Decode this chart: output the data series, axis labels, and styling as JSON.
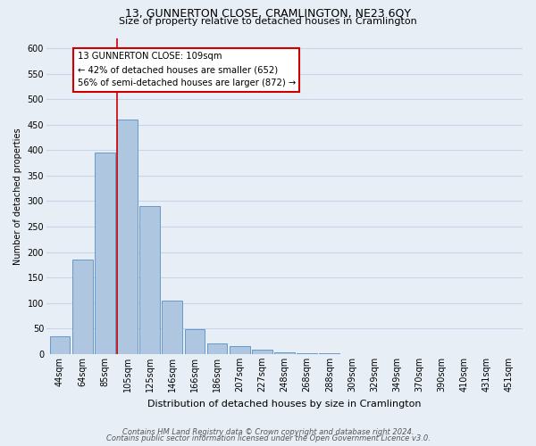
{
  "title": "13, GUNNERTON CLOSE, CRAMLINGTON, NE23 6QY",
  "subtitle": "Size of property relative to detached houses in Cramlington",
  "xlabel": "Distribution of detached houses by size in Cramlington",
  "ylabel": "Number of detached properties",
  "bin_labels": [
    "44sqm",
    "64sqm",
    "85sqm",
    "105sqm",
    "125sqm",
    "146sqm",
    "166sqm",
    "186sqm",
    "207sqm",
    "227sqm",
    "248sqm",
    "268sqm",
    "288sqm",
    "309sqm",
    "329sqm",
    "349sqm",
    "370sqm",
    "390sqm",
    "410sqm",
    "431sqm",
    "451sqm"
  ],
  "bar_heights": [
    35,
    185,
    395,
    460,
    290,
    105,
    48,
    20,
    15,
    8,
    3,
    1,
    1,
    0,
    0,
    0,
    0,
    0,
    0,
    0,
    0
  ],
  "bar_color": "#aec6df",
  "bar_edge_color": "#6699cc",
  "vline_color": "#cc0000",
  "annotation_line1": "13 GUNNERTON CLOSE: 109sqm",
  "annotation_line2": "← 42% of detached houses are smaller (652)",
  "annotation_line3": "56% of semi-detached houses are larger (872) →",
  "annotation_box_color": "#ffffff",
  "annotation_box_edge": "#cc0000",
  "ylim": [
    0,
    620
  ],
  "yticks": [
    0,
    50,
    100,
    150,
    200,
    250,
    300,
    350,
    400,
    450,
    500,
    550,
    600
  ],
  "footnote1": "Contains HM Land Registry data © Crown copyright and database right 2024.",
  "footnote2": "Contains public sector information licensed under the Open Government Licence v3.0.",
  "grid_color": "#c8d4e8",
  "bg_color": "#e8eef6",
  "plot_bg_color": "#e8eef6",
  "title_fontsize": 9,
  "subtitle_fontsize": 8,
  "xlabel_fontsize": 8,
  "ylabel_fontsize": 7,
  "tick_fontsize": 7,
  "footnote_fontsize": 6
}
